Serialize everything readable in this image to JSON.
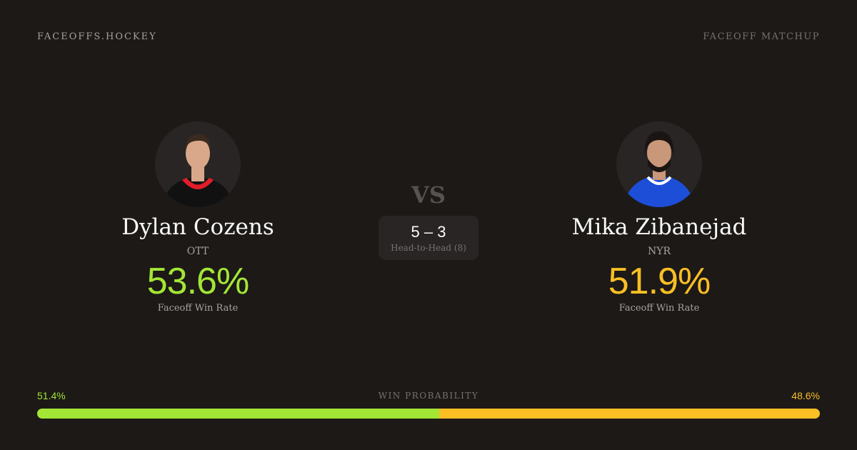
{
  "header": {
    "brand": "FACEOFFS.HOCKEY",
    "label": "FACEOFF MATCHUP"
  },
  "colors": {
    "left": "#a3e635",
    "right": "#fbbf24"
  },
  "players": [
    {
      "name": "Dylan Cozens",
      "team": "OTT",
      "win_rate": "53.6%",
      "win_rate_label": "Faceoff Win Rate",
      "jersey": "#111111",
      "trim": "#e11d2a",
      "skin": "#d9a88a",
      "hair": "#3b2a1f"
    },
    {
      "name": "Mika Zibanejad",
      "team": "NYR",
      "win_rate": "51.9%",
      "win_rate_label": "Faceoff Win Rate",
      "jersey": "#1d4ed8",
      "trim": "#ffffff",
      "skin": "#c99779",
      "hair": "#1a1412"
    }
  ],
  "vs": "VS",
  "head_to_head": {
    "score": "5 – 3",
    "label": "Head-to-Head (8)"
  },
  "win_probability": {
    "title": "WIN PROBABILITY",
    "left": "51.4%",
    "right": "48.6%",
    "left_value": 51.4,
    "right_value": 48.6
  }
}
